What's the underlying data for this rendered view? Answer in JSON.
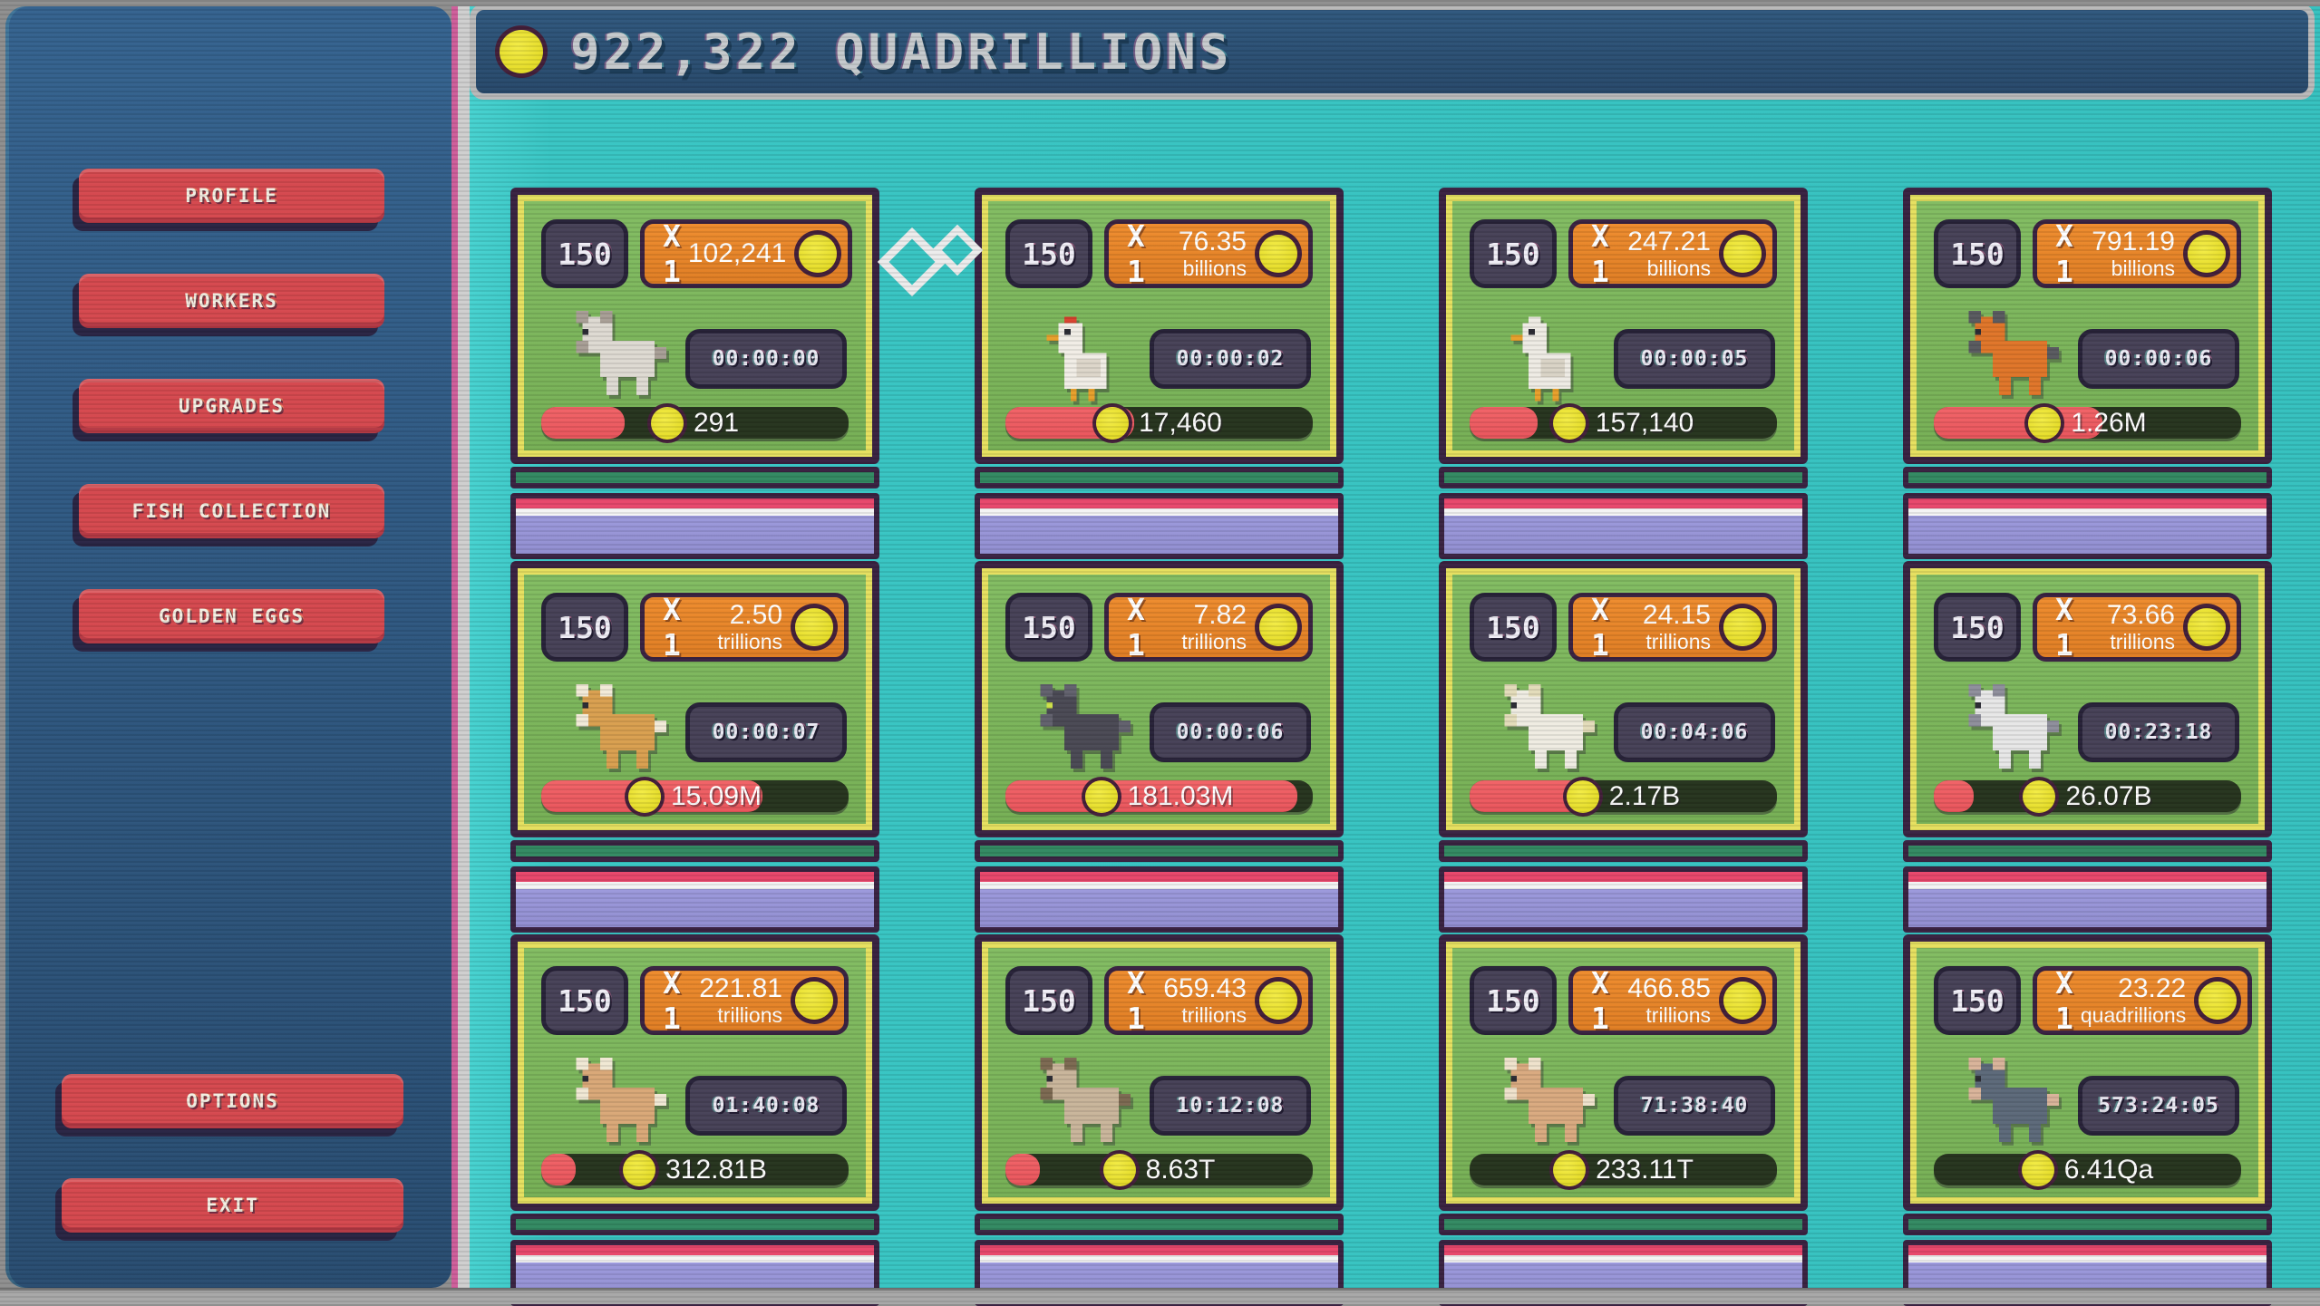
{
  "header": {
    "title": "922,322 QUADRILLIONS"
  },
  "sidebar": {
    "top_buttons": [
      {
        "label": "PROFILE"
      },
      {
        "label": "WORKERS"
      },
      {
        "label": "UPGRADES"
      },
      {
        "label": "FISH COLLECTION"
      },
      {
        "label": "GOLDEN EGGS"
      }
    ],
    "bottom_buttons": [
      {
        "label": "OPTIONS"
      },
      {
        "label": "EXIT"
      }
    ]
  },
  "colors": {
    "accent_red": "#d5494f",
    "teal_background": "#39c6c4",
    "sidebar_blue": "#2f5b84",
    "header_blue": "#2d5377",
    "card_green": "#7db75e",
    "card_border_purple": "#3a2342",
    "card_border_yellow": "#e6e060",
    "badge_slate": "#474258",
    "pill_orange": "#ec8629",
    "coin_yellow": "#e8df2e",
    "bar_track_green": "#27351f",
    "bar_fill_red": "#ef5d62",
    "footer_lavender": "#9693d6",
    "footer_pink": "#e8476c",
    "xp_green": "#338a63"
  },
  "cards": [
    {
      "level": "150",
      "multiplier": "X 1",
      "rate_value": "102,241",
      "rate_unit": "",
      "timer": "00:00:00",
      "progress_label": "291",
      "pct": 27,
      "animal": "cat",
      "sprite": {
        "t": "quad",
        "p": "#dedad2",
        "s": "#a89f96"
      }
    },
    {
      "level": "150",
      "multiplier": "X 1",
      "rate_value": "76.35",
      "rate_unit": "billions",
      "timer": "00:00:02",
      "progress_label": "17,460",
      "pct": 42,
      "animal": "chicken",
      "sprite": {
        "t": "bird",
        "p": "#f1ede6",
        "s": "#ddd6ca",
        "a": "#d8432f"
      }
    },
    {
      "level": "150",
      "multiplier": "X 1",
      "rate_value": "247.21",
      "rate_unit": "billions",
      "timer": "00:00:05",
      "progress_label": "157,140",
      "pct": 22,
      "animal": "duck",
      "sprite": {
        "t": "bird",
        "p": "#eeebe4",
        "s": "#d9d3c6",
        "a": "#eeebe4"
      }
    },
    {
      "level": "150",
      "multiplier": "X 1",
      "rate_value": "791.19",
      "rate_unit": "billions",
      "timer": "00:00:06",
      "progress_label": "1.26M",
      "pct": 55,
      "animal": "fox",
      "sprite": {
        "t": "quad",
        "p": "#e0762a",
        "s": "#5a5b60"
      }
    },
    {
      "level": "150",
      "multiplier": "X 1",
      "rate_value": "2.50",
      "rate_unit": "trillions",
      "timer": "00:00:07",
      "progress_label": "15.09M",
      "pct": 72,
      "animal": "dog",
      "sprite": {
        "t": "quad",
        "p": "#d9a050",
        "s": "#f2ead8"
      }
    },
    {
      "level": "150",
      "multiplier": "X 1",
      "rate_value": "7.82",
      "rate_unit": "trillions",
      "timer": "00:00:06",
      "progress_label": "181.03M",
      "pct": 95,
      "animal": "black-cat",
      "sprite": {
        "t": "quad",
        "p": "#4b4a55",
        "s": "#63626e",
        "e": "#cfe24a"
      }
    },
    {
      "level": "150",
      "multiplier": "X 1",
      "rate_value": "24.15",
      "rate_unit": "trillions",
      "timer": "00:04:06",
      "progress_label": "2.17B",
      "pct": 37,
      "animal": "sheep",
      "sprite": {
        "t": "quad",
        "p": "#efece2",
        "s": "#e3dcba"
      }
    },
    {
      "level": "150",
      "multiplier": "X 1",
      "rate_value": "73.66",
      "rate_unit": "trillions",
      "timer": "00:23:18",
      "progress_label": "26.07B",
      "pct": 13,
      "animal": "cow",
      "sprite": {
        "t": "quad",
        "p": "#e7e7e7",
        "s": "#8f8f9c"
      }
    },
    {
      "level": "150",
      "multiplier": "X 1",
      "rate_value": "221.81",
      "rate_unit": "trillions",
      "timer": "01:40:08",
      "progress_label": "312.81B",
      "pct": 8,
      "animal": "horse",
      "sprite": {
        "t": "quad",
        "p": "#d9a878",
        "s": "#f0e8d4"
      }
    },
    {
      "level": "150",
      "multiplier": "X 1",
      "rate_value": "659.43",
      "rate_unit": "trillions",
      "timer": "10:12:08",
      "progress_label": "8.63T",
      "pct": 7,
      "animal": "deer",
      "sprite": {
        "t": "quad",
        "p": "#c9b59b",
        "s": "#7d6a52"
      }
    },
    {
      "level": "150",
      "multiplier": "X 1",
      "rate_value": "466.85",
      "rate_unit": "trillions",
      "timer": "71:38:40",
      "progress_label": "233.11T",
      "pct": 0,
      "animal": "llama",
      "sprite": {
        "t": "quad",
        "p": "#d9aa80",
        "s": "#efe2cc"
      }
    },
    {
      "level": "150",
      "multiplier": "X 1",
      "rate_value": "23.22",
      "rate_unit": "quadrillions",
      "timer": "573:24:05",
      "progress_label": "6.41Qa",
      "pct": 0,
      "animal": "bear",
      "sprite": {
        "t": "quad",
        "p": "#5d6a7a",
        "s": "#d9b49a"
      }
    }
  ]
}
